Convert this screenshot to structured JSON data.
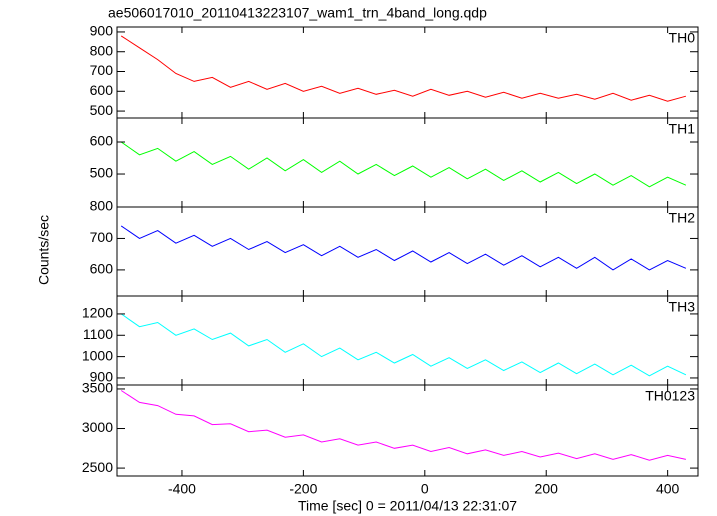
{
  "chart_data": [
    {
      "type": "line",
      "title": "ae506017010_20110413223107_wam1_trn_4band_long.qdp",
      "x": [
        -500,
        -470,
        -440,
        -410,
        -380,
        -350,
        -320,
        -290,
        -260,
        -230,
        -200,
        -170,
        -140,
        -110,
        -80,
        -50,
        -20,
        10,
        40,
        70,
        100,
        130,
        160,
        190,
        220,
        250,
        280,
        310,
        340,
        370,
        400,
        430
      ],
      "series": [
        {
          "name": "TH0",
          "color": "#ff0000",
          "values": [
            880,
            820,
            760,
            690,
            650,
            670,
            620,
            650,
            610,
            640,
            600,
            625,
            590,
            615,
            585,
            605,
            575,
            610,
            580,
            600,
            570,
            595,
            565,
            590,
            565,
            585,
            560,
            590,
            555,
            580,
            550,
            575
          ]
        }
      ],
      "xlim": [
        -507,
        450
      ],
      "xticks": [
        -400,
        -200,
        0,
        200,
        400
      ],
      "ylim": [
        465,
        925
      ],
      "yticks": [
        500,
        600,
        700,
        800,
        900
      ]
    },
    {
      "type": "line",
      "x": [
        -500,
        -470,
        -440,
        -410,
        -380,
        -350,
        -320,
        -290,
        -260,
        -230,
        -200,
        -170,
        -140,
        -110,
        -80,
        -50,
        -20,
        10,
        40,
        70,
        100,
        130,
        160,
        190,
        220,
        250,
        280,
        310,
        340,
        370,
        400,
        430
      ],
      "series": [
        {
          "name": "TH1",
          "color": "#00ff00",
          "values": [
            600,
            560,
            580,
            540,
            570,
            530,
            555,
            515,
            550,
            510,
            545,
            505,
            540,
            500,
            530,
            495,
            525,
            490,
            520,
            485,
            515,
            480,
            510,
            475,
            505,
            470,
            500,
            465,
            495,
            460,
            490,
            465
          ]
        }
      ],
      "xlim": [
        -507,
        450
      ],
      "xticks": [
        -400,
        -200,
        0,
        200,
        400
      ],
      "ylim": [
        397,
        675
      ],
      "yticks": [
        500,
        600
      ]
    },
    {
      "type": "line",
      "ylabel": "Counts/sec",
      "x": [
        -500,
        -470,
        -440,
        -410,
        -380,
        -350,
        -320,
        -290,
        -260,
        -230,
        -200,
        -170,
        -140,
        -110,
        -80,
        -50,
        -20,
        10,
        40,
        70,
        100,
        130,
        160,
        190,
        220,
        250,
        280,
        310,
        340,
        370,
        400,
        430
      ],
      "series": [
        {
          "name": "TH2",
          "color": "#0000ff",
          "values": [
            740,
            700,
            725,
            685,
            710,
            675,
            700,
            665,
            690,
            655,
            680,
            645,
            675,
            640,
            665,
            630,
            660,
            625,
            655,
            620,
            650,
            615,
            645,
            610,
            640,
            605,
            640,
            600,
            635,
            600,
            630,
            605
          ]
        }
      ],
      "xlim": [
        -507,
        450
      ],
      "xticks": [
        -400,
        -200,
        0,
        200,
        400
      ],
      "ylim": [
        517,
        800
      ],
      "yticks": [
        600,
        700,
        800
      ]
    },
    {
      "type": "line",
      "x": [
        -500,
        -470,
        -440,
        -410,
        -380,
        -350,
        -320,
        -290,
        -260,
        -230,
        -200,
        -170,
        -140,
        -110,
        -80,
        -50,
        -20,
        10,
        40,
        70,
        100,
        130,
        160,
        190,
        220,
        250,
        280,
        310,
        340,
        370,
        400,
        430
      ],
      "series": [
        {
          "name": "TH3",
          "color": "#00ffff",
          "values": [
            1200,
            1140,
            1160,
            1100,
            1130,
            1080,
            1110,
            1050,
            1080,
            1020,
            1060,
            1000,
            1040,
            985,
            1020,
            970,
            1010,
            955,
            995,
            945,
            985,
            935,
            975,
            925,
            970,
            920,
            965,
            915,
            960,
            910,
            955,
            915
          ]
        }
      ],
      "xlim": [
        -507,
        450
      ],
      "xticks": [
        -400,
        -200,
        0,
        200,
        400
      ],
      "ylim": [
        867,
        1284
      ],
      "yticks": [
        900,
        1000,
        1100,
        1200
      ]
    },
    {
      "type": "line",
      "xlabel": "Time [sec] 0 = 2011/04/13 22:31:07",
      "x": [
        -500,
        -470,
        -440,
        -410,
        -380,
        -350,
        -320,
        -290,
        -260,
        -230,
        -200,
        -170,
        -140,
        -110,
        -80,
        -50,
        -20,
        10,
        40,
        70,
        100,
        130,
        160,
        190,
        220,
        250,
        280,
        310,
        340,
        370,
        400,
        430
      ],
      "series": [
        {
          "name": "TH0123",
          "color": "#ff00ff",
          "values": [
            3480,
            3330,
            3290,
            3180,
            3160,
            3050,
            3060,
            2960,
            2980,
            2890,
            2920,
            2830,
            2870,
            2790,
            2830,
            2750,
            2790,
            2710,
            2760,
            2680,
            2730,
            2660,
            2710,
            2640,
            2690,
            2620,
            2680,
            2610,
            2670,
            2600,
            2660,
            2610
          ]
        }
      ],
      "xlim": [
        -507,
        450
      ],
      "xticks": [
        -400,
        -200,
        0,
        200,
        400
      ],
      "ylim": [
        2400,
        3550
      ],
      "yticks": [
        2500,
        3000,
        3500
      ]
    }
  ]
}
